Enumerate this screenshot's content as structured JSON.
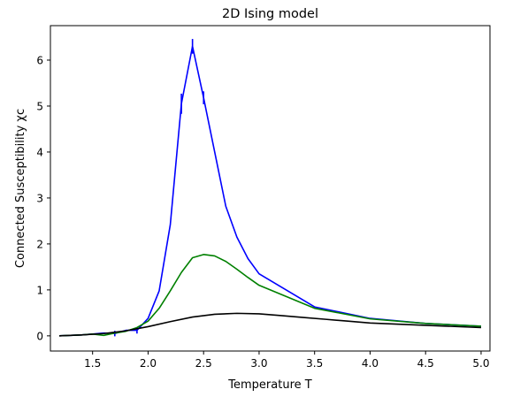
{
  "chart_data": {
    "type": "line",
    "title": "2D Ising model",
    "xlabel": "Temperature T",
    "ylabel": "Connected Susceptibility χc",
    "xlim": [
      1.12,
      5.08
    ],
    "ylim": [
      -0.33,
      6.75
    ],
    "xticks": [
      1.5,
      2.0,
      2.5,
      3.0,
      3.5,
      4.0,
      4.5,
      5.0
    ],
    "xtick_labels": [
      "1.5",
      "2.0",
      "2.5",
      "3.0",
      "3.5",
      "4.0",
      "4.5",
      "5.0"
    ],
    "yticks": [
      0,
      1,
      2,
      3,
      4,
      5,
      6
    ],
    "ytick_labels": [
      "0",
      "1",
      "2",
      "3",
      "4",
      "5",
      "6"
    ],
    "grid": false,
    "series": [
      {
        "color": "#0000ff",
        "x": [
          1.2,
          1.3,
          1.4,
          1.5,
          1.6,
          1.7,
          1.8,
          1.9,
          2.0,
          2.1,
          2.2,
          2.3,
          2.4,
          2.5,
          2.6,
          2.7,
          2.8,
          2.9,
          3.0,
          3.5,
          4.0,
          4.5,
          5.0
        ],
        "y": [
          0.0,
          0.01,
          0.02,
          0.04,
          0.06,
          0.05,
          0.12,
          0.12,
          0.38,
          0.98,
          2.42,
          5.05,
          6.3,
          5.18,
          4.0,
          2.82,
          2.15,
          1.68,
          1.35,
          0.63,
          0.38,
          0.27,
          0.21
        ],
        "yerr": [
          0.0,
          0.0,
          0.0,
          0.0,
          0.0,
          0.06,
          0.0,
          0.07,
          0.0,
          0.0,
          0.0,
          0.22,
          0.16,
          0.14,
          0.0,
          0.0,
          0.0,
          0.0,
          0.0,
          0.0,
          0.0,
          0.0,
          0.0
        ]
      },
      {
        "color": "#008000",
        "x": [
          1.2,
          1.3,
          1.4,
          1.5,
          1.6,
          1.7,
          1.8,
          1.9,
          2.0,
          2.1,
          2.2,
          2.3,
          2.4,
          2.5,
          2.6,
          2.7,
          2.8,
          2.9,
          3.0,
          3.5,
          4.0,
          4.5,
          5.0
        ],
        "y": [
          0.0,
          0.01,
          0.02,
          0.04,
          0.01,
          0.06,
          0.1,
          0.18,
          0.32,
          0.6,
          0.98,
          1.38,
          1.7,
          1.77,
          1.74,
          1.62,
          1.45,
          1.27,
          1.1,
          0.6,
          0.37,
          0.27,
          0.21
        ]
      },
      {
        "color": "#000000",
        "x": [
          1.2,
          1.4,
          1.6,
          1.8,
          2.0,
          2.2,
          2.4,
          2.6,
          2.8,
          3.0,
          3.2,
          3.4,
          3.6,
          3.8,
          4.0,
          4.5,
          5.0
        ],
        "y": [
          0.0,
          0.02,
          0.05,
          0.11,
          0.2,
          0.31,
          0.41,
          0.47,
          0.49,
          0.48,
          0.44,
          0.4,
          0.36,
          0.32,
          0.28,
          0.23,
          0.18
        ]
      }
    ]
  }
}
